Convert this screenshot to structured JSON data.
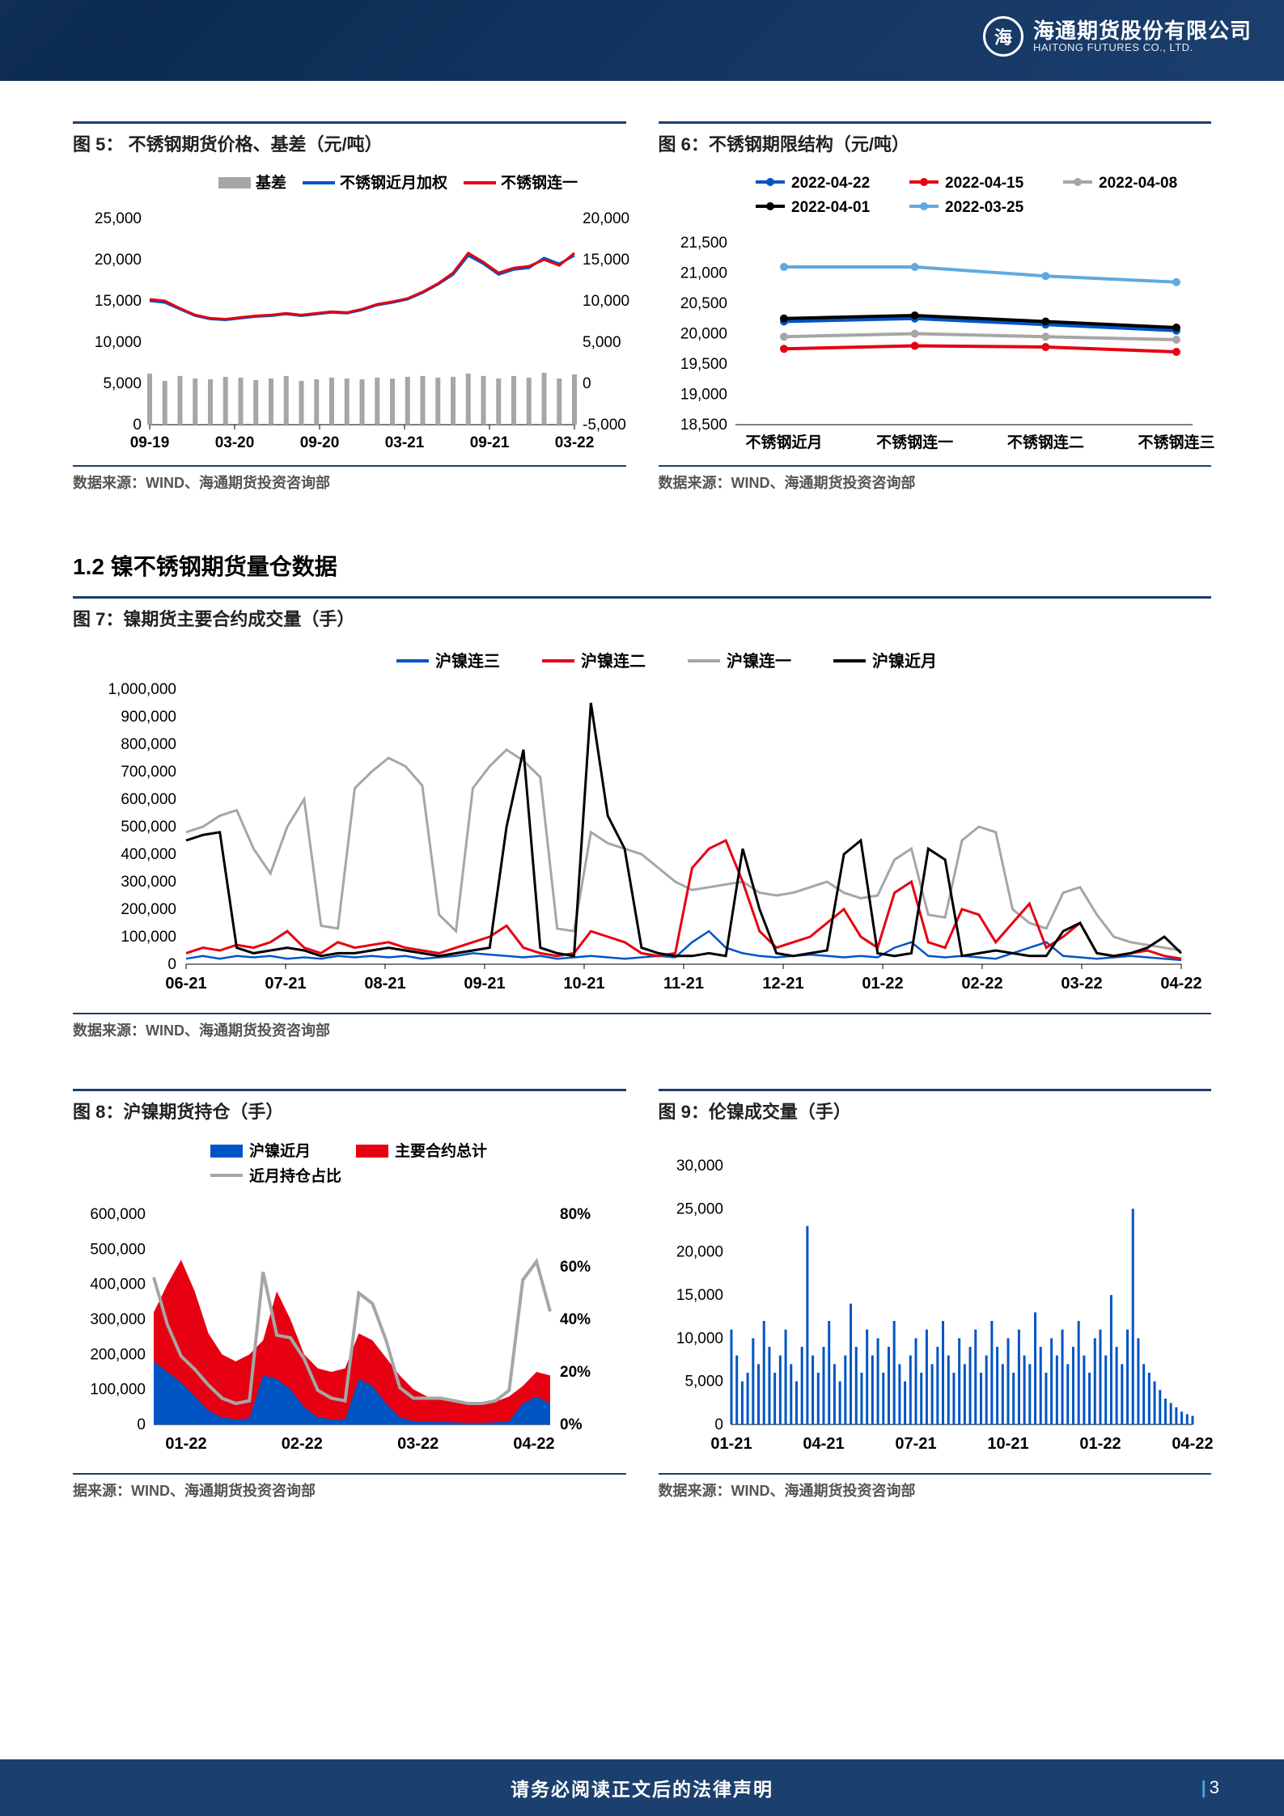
{
  "header": {
    "logo_cn": "海通期货股份有限公司",
    "logo_en": "HAITONG FUTURES CO., LTD.",
    "logo_mark": "海"
  },
  "colors": {
    "brand_navy": "#1b3f6e",
    "red": "#e60012",
    "blue": "#0055c4",
    "grey": "#a6a6a6",
    "black": "#000000",
    "lightblue": "#5fa9e0",
    "axis": "#666666",
    "grid": "#dcdcdc"
  },
  "chart5": {
    "title": "图 5：  不锈钢期货价格、基差（元/吨）",
    "legend": [
      {
        "label": "基差",
        "type": "bar",
        "color": "#a6a6a6"
      },
      {
        "label": "不锈钢近月加权",
        "type": "line",
        "color": "#0055c4"
      },
      {
        "label": "不锈钢连一",
        "type": "line",
        "color": "#e60012"
      }
    ],
    "x_labels": [
      "09-19",
      "03-20",
      "09-20",
      "03-21",
      "09-21",
      "03-22"
    ],
    "y_left": {
      "min": 0,
      "max": 25000,
      "step": 5000
    },
    "y_right": {
      "min": -5000,
      "max": 20000,
      "step": 5000
    },
    "series_blue": [
      15000,
      14800,
      14000,
      13200,
      12800,
      12700,
      12900,
      13100,
      13200,
      13400,
      13200,
      13400,
      13600,
      13500,
      13900,
      14500,
      14800,
      15200,
      16000,
      17000,
      18200,
      20500,
      19500,
      18200,
      18800,
      19000,
      20200,
      19500,
      20500
    ],
    "series_red": [
      15200,
      15000,
      14100,
      13300,
      12900,
      12800,
      13000,
      13200,
      13300,
      13500,
      13300,
      13500,
      13700,
      13600,
      14000,
      14600,
      14900,
      15300,
      16100,
      17100,
      18400,
      20800,
      19700,
      18400,
      19000,
      19200,
      20000,
      19300,
      20800
    ],
    "series_basis": [
      1200,
      300,
      900,
      600,
      500,
      800,
      700,
      400,
      600,
      900,
      300,
      500,
      700,
      600,
      500,
      700,
      600,
      800,
      900,
      700,
      800,
      1200,
      900,
      600,
      900,
      700,
      1300,
      600,
      1100
    ],
    "source": "数据来源：WIND、海通期货投资咨询部"
  },
  "chart6": {
    "title": "图 6：不锈钢期限结构（元/吨）",
    "legend": [
      {
        "label": "2022-04-22",
        "color": "#0055c4"
      },
      {
        "label": "2022-04-15",
        "color": "#e60012"
      },
      {
        "label": "2022-04-08",
        "color": "#a6a6a6"
      },
      {
        "label": "2022-04-01",
        "color": "#000000"
      },
      {
        "label": "2022-03-25",
        "color": "#5fa9e0"
      }
    ],
    "x_labels": [
      "不锈钢近月",
      "不锈钢连一",
      "不锈钢连二",
      "不锈钢连三"
    ],
    "y": {
      "min": 18500,
      "max": 21500,
      "step": 500
    },
    "series": {
      "2022-04-22": [
        20200,
        20250,
        20150,
        20050
      ],
      "2022-04-15": [
        19750,
        19800,
        19780,
        19700
      ],
      "2022-04-08": [
        19950,
        20000,
        19950,
        19900
      ],
      "2022-04-01": [
        20250,
        20300,
        20200,
        20100
      ],
      "2022-03-25": [
        21100,
        21100,
        20950,
        20850
      ]
    },
    "source": "数据来源：WIND、海通期货投资咨询部"
  },
  "section12": "1.2 镍不锈钢期货量仓数据",
  "chart7": {
    "title": "图 7：镍期货主要合约成交量（手）",
    "legend": [
      {
        "label": "沪镍连三",
        "color": "#0055c4"
      },
      {
        "label": "沪镍连二",
        "color": "#e60012"
      },
      {
        "label": "沪镍连一",
        "color": "#a6a6a6"
      },
      {
        "label": "沪镍近月",
        "color": "#000000"
      }
    ],
    "x_labels": [
      "06-21",
      "07-21",
      "08-21",
      "09-21",
      "10-21",
      "11-21",
      "12-21",
      "01-22",
      "02-22",
      "03-22",
      "04-22"
    ],
    "y": {
      "min": 0,
      "max": 1000000,
      "step": 100000
    },
    "series": {
      "grey": [
        480000,
        500000,
        540000,
        560000,
        420000,
        330000,
        500000,
        600000,
        140000,
        130000,
        640000,
        700000,
        750000,
        720000,
        650000,
        180000,
        120000,
        640000,
        720000,
        780000,
        740000,
        680000,
        130000,
        120000,
        480000,
        440000,
        420000,
        400000,
        350000,
        300000,
        270000,
        280000,
        290000,
        300000,
        260000,
        250000,
        260000,
        280000,
        300000,
        260000,
        240000,
        250000,
        380000,
        420000,
        180000,
        170000,
        450000,
        500000,
        480000,
        200000,
        150000,
        130000,
        260000,
        280000,
        180000,
        100000,
        80000,
        70000,
        60000,
        50000
      ],
      "black": [
        450000,
        470000,
        480000,
        60000,
        40000,
        50000,
        60000,
        50000,
        30000,
        40000,
        40000,
        50000,
        60000,
        50000,
        40000,
        30000,
        40000,
        50000,
        60000,
        500000,
        780000,
        60000,
        40000,
        30000,
        950000,
        540000,
        420000,
        60000,
        40000,
        30000,
        30000,
        40000,
        30000,
        420000,
        200000,
        40000,
        30000,
        40000,
        50000,
        400000,
        450000,
        40000,
        30000,
        40000,
        420000,
        380000,
        30000,
        40000,
        50000,
        40000,
        30000,
        30000,
        120000,
        150000,
        40000,
        30000,
        40000,
        60000,
        100000,
        40000
      ],
      "red": [
        40000,
        60000,
        50000,
        70000,
        60000,
        80000,
        120000,
        60000,
        40000,
        80000,
        60000,
        70000,
        80000,
        60000,
        50000,
        40000,
        60000,
        80000,
        100000,
        140000,
        60000,
        40000,
        30000,
        40000,
        120000,
        100000,
        80000,
        40000,
        30000,
        40000,
        350000,
        420000,
        450000,
        300000,
        120000,
        60000,
        80000,
        100000,
        150000,
        200000,
        100000,
        60000,
        260000,
        300000,
        80000,
        60000,
        200000,
        180000,
        80000,
        150000,
        220000,
        60000,
        100000,
        150000,
        40000,
        30000,
        40000,
        50000,
        30000,
        20000
      ],
      "blue": [
        20000,
        30000,
        20000,
        30000,
        25000,
        30000,
        20000,
        25000,
        20000,
        30000,
        25000,
        30000,
        25000,
        30000,
        20000,
        25000,
        30000,
        40000,
        35000,
        30000,
        25000,
        30000,
        20000,
        25000,
        30000,
        25000,
        20000,
        25000,
        30000,
        25000,
        80000,
        120000,
        60000,
        40000,
        30000,
        25000,
        30000,
        35000,
        30000,
        25000,
        30000,
        25000,
        60000,
        80000,
        30000,
        25000,
        30000,
        25000,
        20000,
        40000,
        60000,
        80000,
        30000,
        25000,
        20000,
        25000,
        30000,
        25000,
        20000,
        15000
      ]
    },
    "source": "数据来源：WIND、海通期货投资咨询部"
  },
  "chart8": {
    "title": "图 8：沪镍期货持仓（手）",
    "legend": [
      {
        "label": "沪镍近月",
        "type": "area",
        "color": "#0055c4"
      },
      {
        "label": "主要合约总计",
        "type": "area",
        "color": "#e60012"
      },
      {
        "label": "近月持仓占比",
        "type": "line",
        "color": "#a6a6a6"
      }
    ],
    "x_labels": [
      "01-22",
      "02-22",
      "03-22",
      "04-22"
    ],
    "y_left": {
      "min": 0,
      "max": 600000,
      "step": 100000
    },
    "y_right": {
      "min": 0,
      "max": 80,
      "step": 20,
      "suffix": "%"
    },
    "total": [
      320000,
      400000,
      470000,
      380000,
      260000,
      200000,
      180000,
      200000,
      240000,
      380000,
      300000,
      200000,
      160000,
      150000,
      160000,
      260000,
      240000,
      190000,
      140000,
      100000,
      80000,
      70000,
      65000,
      60000,
      60000,
      65000,
      80000,
      110000,
      150000,
      140000
    ],
    "near": [
      180000,
      150000,
      120000,
      80000,
      40000,
      20000,
      15000,
      18000,
      140000,
      130000,
      100000,
      50000,
      20000,
      15000,
      14000,
      130000,
      110000,
      60000,
      20000,
      10000,
      8000,
      7000,
      6000,
      5000,
      5000,
      6000,
      10000,
      60000,
      80000,
      60000
    ],
    "ratio": [
      56,
      38,
      26,
      21,
      15,
      10,
      8,
      9,
      58,
      34,
      33,
      25,
      13,
      10,
      9,
      50,
      46,
      32,
      14,
      10,
      10,
      10,
      9,
      8,
      8,
      9,
      13,
      55,
      62,
      43
    ],
    "source": "据来源：WIND、海通期货投资咨询部"
  },
  "chart9": {
    "title": "图 9：伦镍成交量（手）",
    "x_labels": [
      "01-21",
      "04-21",
      "07-21",
      "10-21",
      "01-22",
      "04-22"
    ],
    "y": {
      "min": 0,
      "max": 30000,
      "step": 5000
    },
    "color": "#0055c4",
    "values": [
      11000,
      8000,
      5000,
      6000,
      10000,
      7000,
      12000,
      9000,
      6000,
      8000,
      11000,
      7000,
      5000,
      9000,
      23000,
      8000,
      6000,
      9000,
      12000,
      7000,
      5000,
      8000,
      14000,
      9000,
      6000,
      11000,
      8000,
      10000,
      6000,
      9000,
      12000,
      7000,
      5000,
      8000,
      10000,
      6000,
      11000,
      7000,
      9000,
      12000,
      8000,
      6000,
      10000,
      7000,
      9000,
      11000,
      6000,
      8000,
      12000,
      9000,
      7000,
      10000,
      6000,
      11000,
      8000,
      7000,
      13000,
      9000,
      6000,
      10000,
      8000,
      11000,
      7000,
      9000,
      12000,
      8000,
      6000,
      10000,
      11000,
      8000,
      15000,
      9000,
      7000,
      11000,
      25000,
      10000,
      7000,
      6000,
      5000,
      4000,
      3000,
      2500,
      2000,
      1500,
      1200,
      1000
    ],
    "source": "数据来源：WIND、海通期货投资咨询部"
  },
  "footer": {
    "disclaimer": "请务必阅读正文后的法律声明",
    "page": "3"
  }
}
